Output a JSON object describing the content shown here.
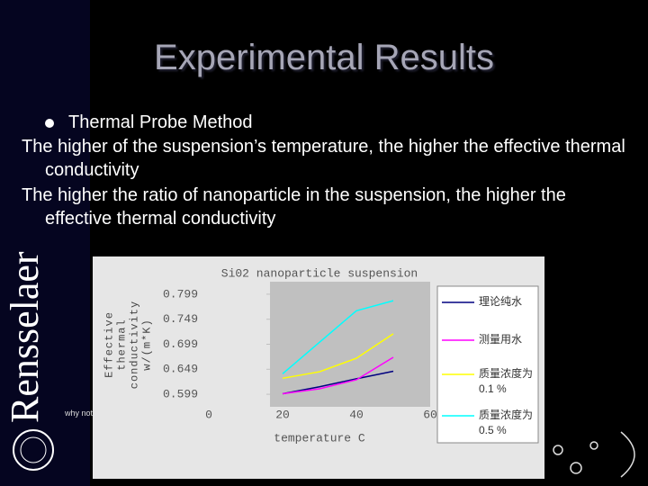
{
  "slide": {
    "title": "Experimental Results",
    "bullets": [
      "Thermal Probe Method",
      "The higher of the suspension’s temperature, the higher the effective thermal conductivity",
      "The higher the ratio of nanoparticle in the suspension, the higher the effective thermal conductivity"
    ],
    "logo": "Rensselaer",
    "tagline": "why not"
  },
  "chart_data": {
    "type": "line",
    "title": "Si02 nanoparticle suspension",
    "x_label": "temperature C",
    "y_label": "Effective thermal conductivity w/(m*K)",
    "x": [
      20,
      30,
      40,
      50
    ],
    "series": [
      {
        "name": "理论纯水",
        "color": "#000080",
        "values": [
          0.6,
          0.614,
          0.63,
          0.645
        ]
      },
      {
        "name": "测量用水",
        "color": "#ff00ff",
        "values": [
          0.6,
          0.61,
          0.628,
          0.673
        ]
      },
      {
        "name": "质量浓度为0.1 %",
        "color": "#ffff00",
        "values": [
          0.631,
          0.644,
          0.671,
          0.72
        ]
      },
      {
        "name": "质量浓度为0.5 %",
        "color": "#00ffff",
        "values": [
          0.64,
          0.703,
          0.766,
          0.786
        ]
      }
    ],
    "xlim": [
      0,
      60
    ],
    "xticks": [
      0,
      20,
      40,
      60
    ],
    "ylim": [
      0.574,
      0.824
    ],
    "yticks": [
      0.599,
      0.649,
      0.699,
      0.749,
      0.799
    ],
    "grid": false
  }
}
